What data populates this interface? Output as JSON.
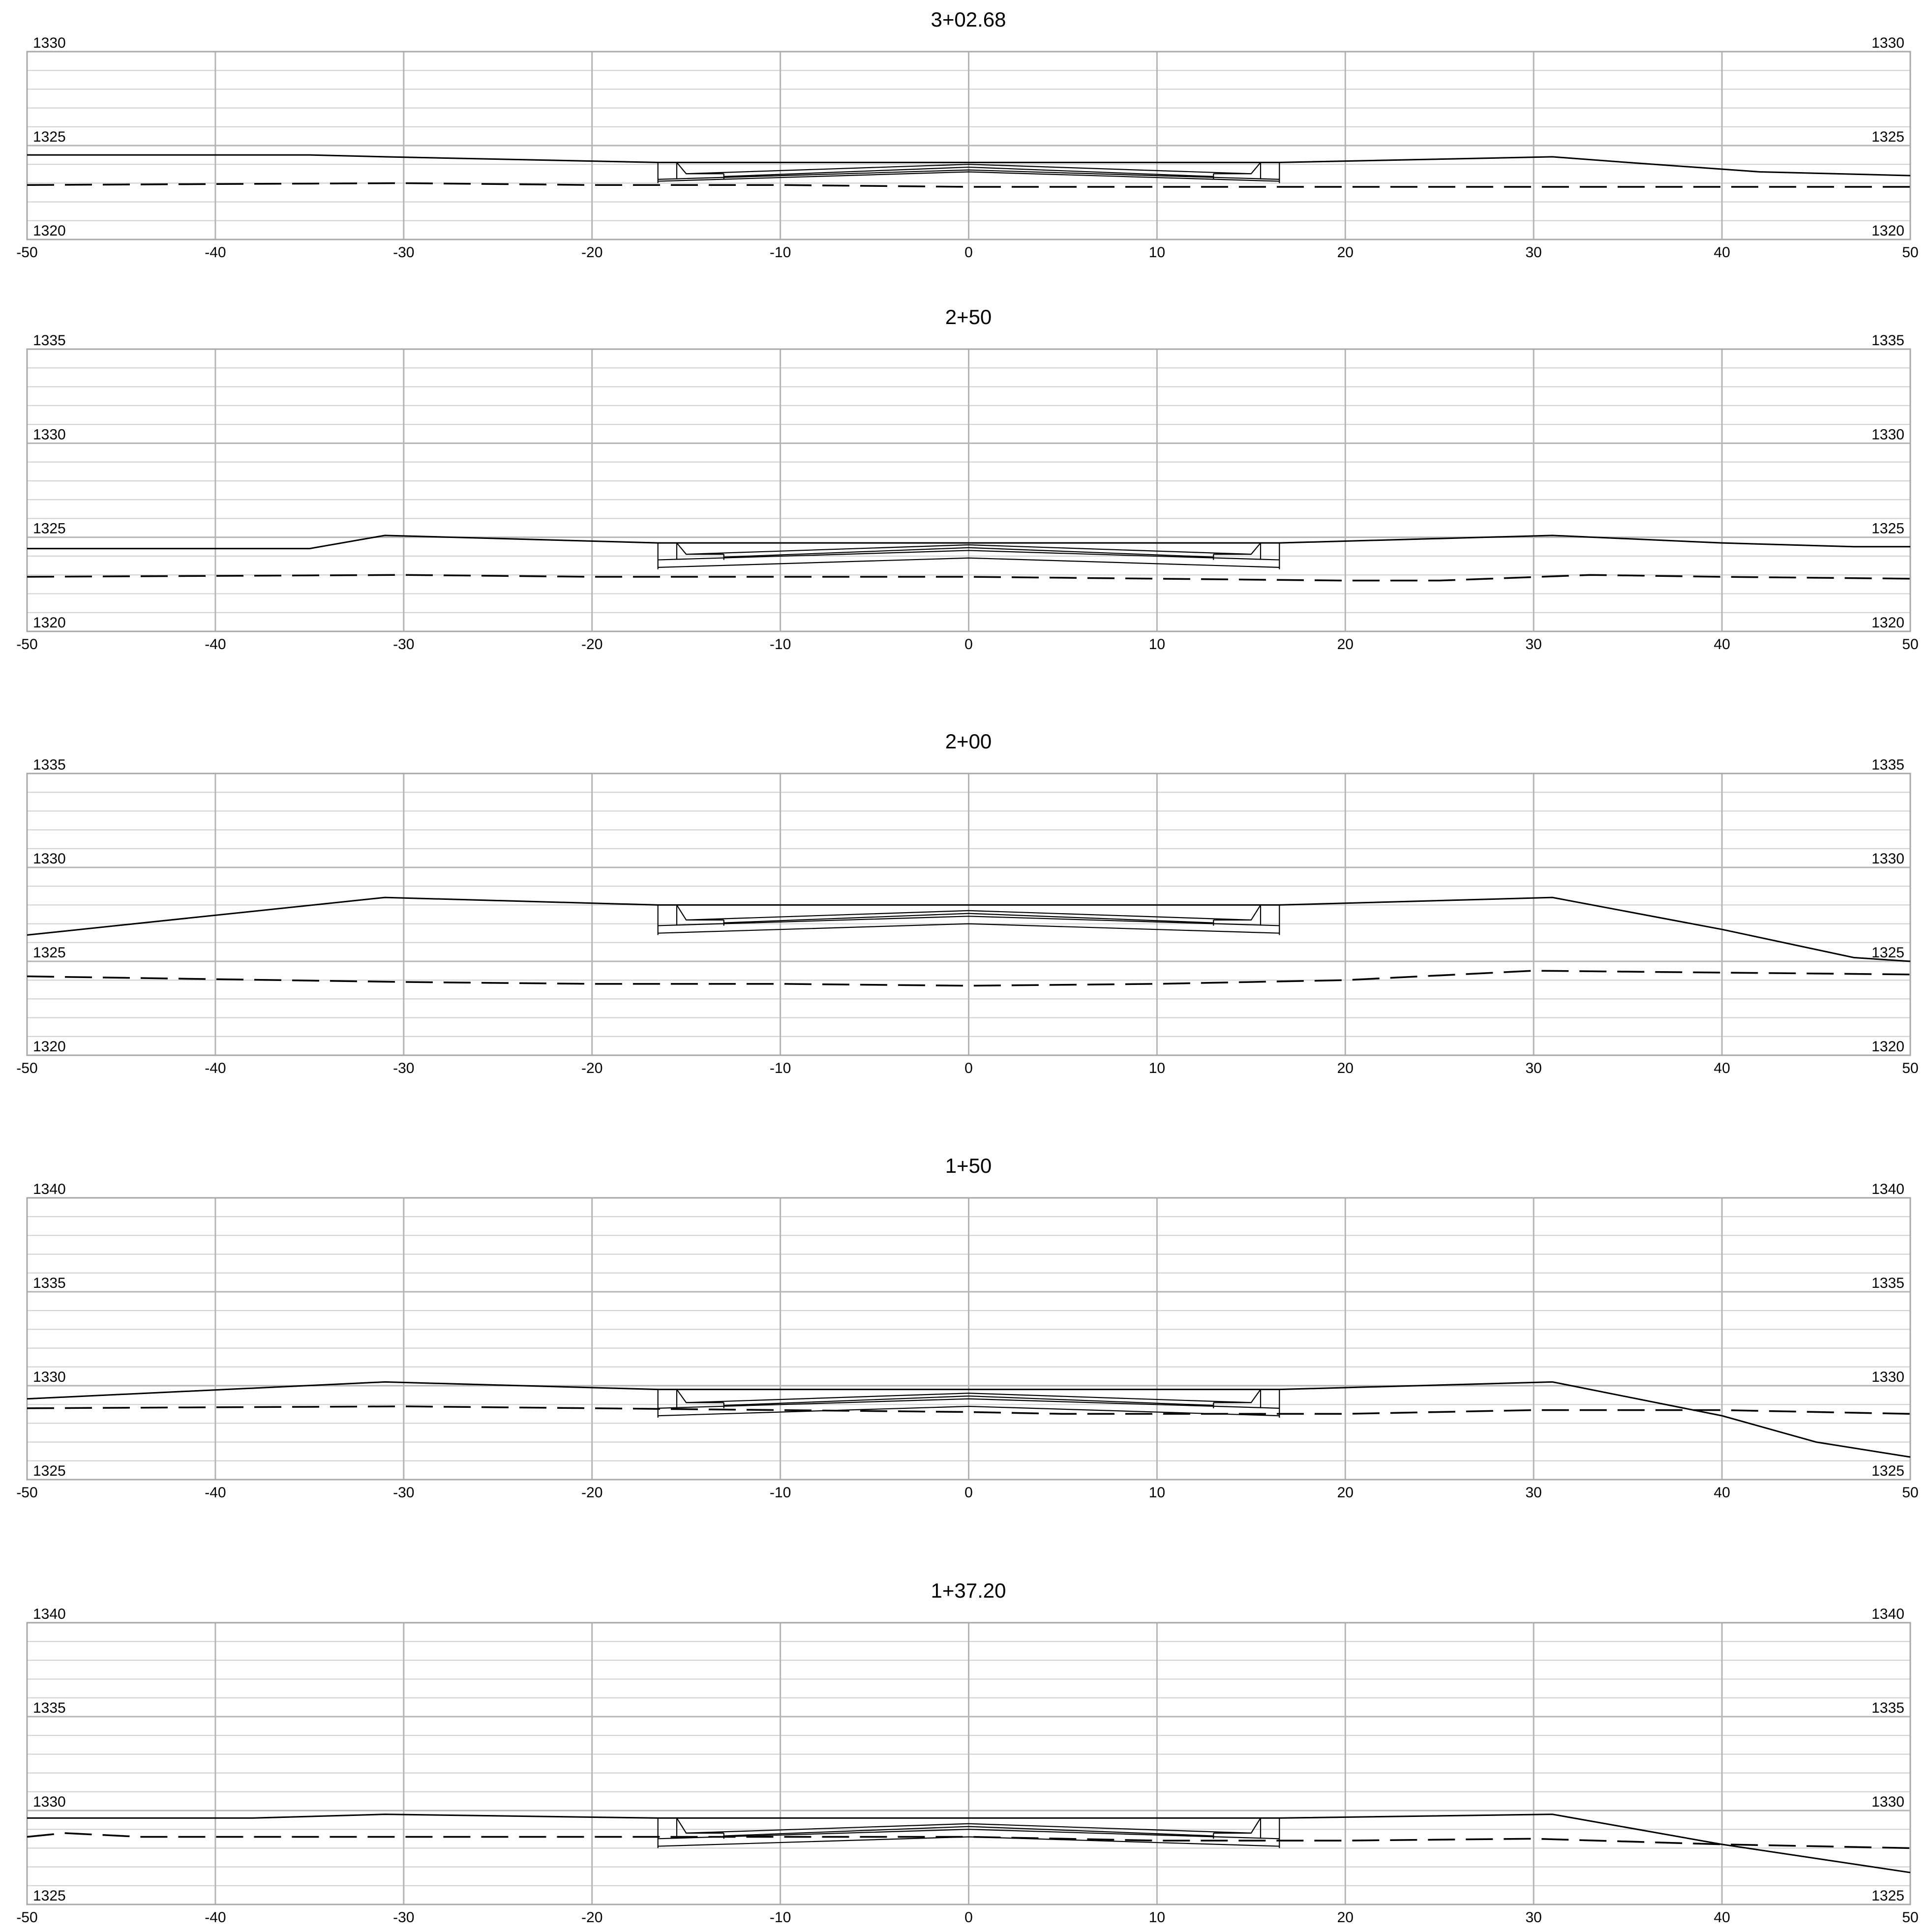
{
  "sections": [
    {
      "title": "3+02.68",
      "y_min": 1320,
      "y_max": 1330,
      "y_labels": [
        "1320",
        "1325",
        "1330"
      ],
      "x_labels": [
        "-50",
        "-40",
        "-30",
        "-20",
        "-10",
        "0",
        "10",
        "20",
        "30",
        "40",
        "50"
      ],
      "surface": [
        [
          -50,
          1324.5
        ],
        [
          -35,
          1324.5
        ],
        [
          -31,
          1324.4
        ],
        [
          -16.5,
          1324.1
        ],
        [
          16.5,
          1324.1
        ],
        [
          31,
          1324.4
        ],
        [
          35,
          1324.1
        ],
        [
          42,
          1323.6
        ],
        [
          50,
          1323.4
        ]
      ],
      "ground": [
        [
          -50,
          1322.9
        ],
        [
          -30,
          1323.0
        ],
        [
          -20,
          1322.9
        ],
        [
          -10,
          1322.9
        ],
        [
          0,
          1322.8
        ],
        [
          10,
          1322.8
        ],
        [
          20,
          1322.8
        ],
        [
          30,
          1322.8
        ],
        [
          50,
          1322.8
        ]
      ],
      "pavement": {
        "centre_top": 1324.0,
        "edge_top": 1323.5,
        "base_drop": 0.4,
        "kerb_top": 1324.1
      }
    },
    {
      "title": "2+50",
      "y_min": 1320,
      "y_max": 1335,
      "y_labels": [
        "1320",
        "1325",
        "1330",
        "1335"
      ],
      "x_labels": [
        "-50",
        "-40",
        "-30",
        "-20",
        "-10",
        "0",
        "10",
        "20",
        "30",
        "40",
        "50"
      ],
      "surface": [
        [
          -50,
          1324.4
        ],
        [
          -35,
          1324.4
        ],
        [
          -31,
          1325.1
        ],
        [
          -16.5,
          1324.7
        ],
        [
          16.5,
          1324.7
        ],
        [
          31,
          1325.1
        ],
        [
          40,
          1324.7
        ],
        [
          47,
          1324.5
        ],
        [
          50,
          1324.5
        ]
      ],
      "ground": [
        [
          -50,
          1322.9
        ],
        [
          -30,
          1323.0
        ],
        [
          -20,
          1322.9
        ],
        [
          -10,
          1322.9
        ],
        [
          0,
          1322.9
        ],
        [
          10,
          1322.8
        ],
        [
          20,
          1322.7
        ],
        [
          25,
          1322.7
        ],
        [
          33,
          1323.0
        ],
        [
          40,
          1322.9
        ],
        [
          50,
          1322.8
        ]
      ],
      "pavement": {
        "centre_top": 1324.6,
        "edge_top": 1324.1,
        "base_drop": 0.7,
        "kerb_top": 1324.7
      }
    },
    {
      "title": "2+00",
      "y_min": 1320,
      "y_max": 1335,
      "y_labels": [
        "1320",
        "1325",
        "1330",
        "1335"
      ],
      "x_labels": [
        "-50",
        "-40",
        "-30",
        "-20",
        "-10",
        "0",
        "10",
        "20",
        "30",
        "40",
        "50"
      ],
      "surface": [
        [
          -50,
          1326.4
        ],
        [
          -31,
          1328.4
        ],
        [
          -16.5,
          1328.0
        ],
        [
          16.5,
          1328.0
        ],
        [
          31,
          1328.4
        ],
        [
          40,
          1326.7
        ],
        [
          47,
          1325.2
        ],
        [
          50,
          1325.0
        ]
      ],
      "ground": [
        [
          -50,
          1324.2
        ],
        [
          -30,
          1323.9
        ],
        [
          -20,
          1323.8
        ],
        [
          -10,
          1323.8
        ],
        [
          0,
          1323.7
        ],
        [
          10,
          1323.8
        ],
        [
          20,
          1324.0
        ],
        [
          30,
          1324.5
        ],
        [
          40,
          1324.4
        ],
        [
          50,
          1324.3
        ]
      ],
      "pavement": {
        "centre_top": 1327.7,
        "edge_top": 1327.2,
        "base_drop": 0.7,
        "kerb_top": 1328.0
      }
    },
    {
      "title": "1+50",
      "y_min": 1325,
      "y_max": 1340,
      "y_labels": [
        "1325",
        "1330",
        "1335",
        "1340"
      ],
      "x_labels": [
        "-50",
        "-40",
        "-30",
        "-20",
        "-10",
        "0",
        "10",
        "20",
        "30",
        "40",
        "50"
      ],
      "surface": [
        [
          -50,
          1329.3
        ],
        [
          -31,
          1330.2
        ],
        [
          -16.5,
          1329.8
        ],
        [
          16.5,
          1329.8
        ],
        [
          31,
          1330.2
        ],
        [
          40,
          1328.4
        ],
        [
          45,
          1327.0
        ],
        [
          50,
          1326.2
        ]
      ],
      "ground": [
        [
          -50,
          1328.8
        ],
        [
          -30,
          1328.9
        ],
        [
          -20,
          1328.8
        ],
        [
          -10,
          1328.7
        ],
        [
          0,
          1328.6
        ],
        [
          5,
          1328.5
        ],
        [
          10,
          1328.5
        ],
        [
          20,
          1328.5
        ],
        [
          30,
          1328.7
        ],
        [
          40,
          1328.7
        ],
        [
          50,
          1328.5
        ]
      ],
      "pavement": {
        "centre_top": 1329.6,
        "edge_top": 1329.1,
        "base_drop": 0.7,
        "kerb_top": 1329.8
      }
    },
    {
      "title": "1+37.20",
      "y_min": 1325,
      "y_max": 1340,
      "y_labels": [
        "1325",
        "1330",
        "1335",
        "1340"
      ],
      "x_labels": [
        "-50",
        "-40",
        "-30",
        "-20",
        "-10",
        "0",
        "10",
        "20",
        "30",
        "40",
        "50"
      ],
      "surface": [
        [
          -50,
          1329.6
        ],
        [
          -38,
          1329.6
        ],
        [
          -31,
          1329.8
        ],
        [
          -16.5,
          1329.6
        ],
        [
          16.5,
          1329.6
        ],
        [
          31,
          1329.8
        ],
        [
          40,
          1328.2
        ],
        [
          50,
          1326.7
        ]
      ],
      "ground": [
        [
          -50,
          1328.6
        ],
        [
          -48,
          1328.8
        ],
        [
          -44,
          1328.6
        ],
        [
          -30,
          1328.6
        ],
        [
          -20,
          1328.6
        ],
        [
          -10,
          1328.6
        ],
        [
          0,
          1328.6
        ],
        [
          10,
          1328.4
        ],
        [
          20,
          1328.4
        ],
        [
          30,
          1328.5
        ],
        [
          40,
          1328.2
        ],
        [
          50,
          1328.0
        ]
      ],
      "pavement": {
        "centre_top": 1329.3,
        "edge_top": 1328.8,
        "base_drop": 0.7,
        "kerb_top": 1329.6
      }
    }
  ]
}
